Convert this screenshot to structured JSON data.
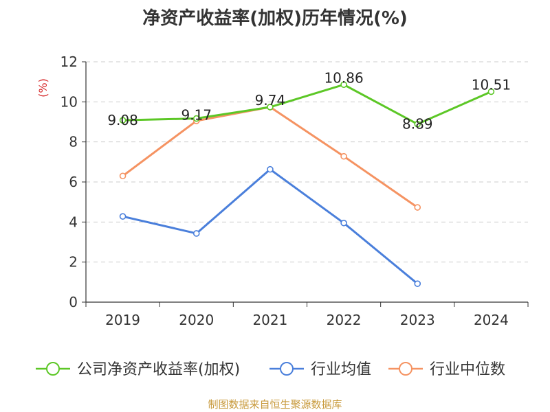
{
  "chart_data": {
    "type": "line",
    "title": "净资产收益率(加权)历年情况(%)",
    "ylabel": "(%)",
    "xlabel": "",
    "categories": [
      "2019",
      "2020",
      "2021",
      "2022",
      "2023",
      "2024"
    ],
    "ylim": [
      0,
      12
    ],
    "yticks": [
      0,
      2,
      4,
      6,
      8,
      10,
      12
    ],
    "grid": true,
    "legend_position": "bottom",
    "series": [
      {
        "name": "公司净资产收益率(加权)",
        "color": "#5cc726",
        "values": [
          9.08,
          9.17,
          9.74,
          10.86,
          8.89,
          10.51
        ],
        "labels": [
          "9.08",
          "9.17",
          "9.74",
          "10.86",
          "8.89",
          "10.51"
        ]
      },
      {
        "name": "行业均值",
        "color": "#4a7fdb",
        "values": [
          4.28,
          3.43,
          6.63,
          3.95,
          0.92,
          null
        ]
      },
      {
        "name": "行业中位数",
        "color": "#f59362",
        "values": [
          6.3,
          9.05,
          9.74,
          7.28,
          4.73,
          null
        ]
      }
    ]
  },
  "source_text": "制图数据来自恒生聚源数据库"
}
